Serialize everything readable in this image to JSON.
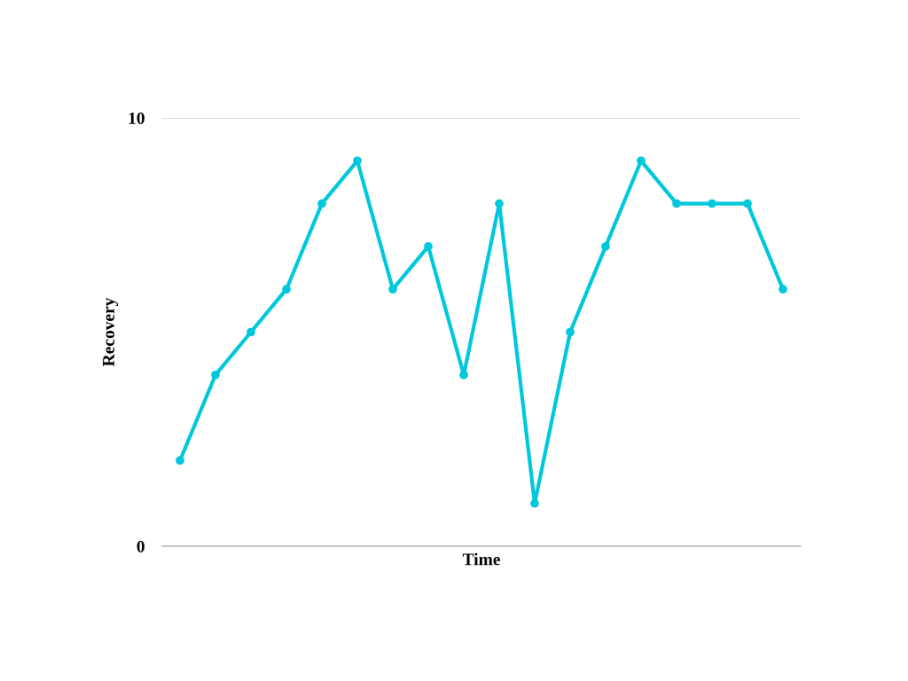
{
  "chart_data": {
    "type": "line",
    "xlabel": "Time",
    "ylabel": "Recovery",
    "categories": [
      null,
      null,
      null,
      null,
      null,
      null,
      null,
      null,
      null,
      null,
      null,
      null,
      null,
      null,
      null,
      null,
      null,
      null
    ],
    "series": [
      {
        "color": "#00c8dc",
        "values": [
          2,
          4,
          5,
          6,
          8,
          9,
          6,
          7,
          4,
          8,
          1,
          5,
          7,
          9,
          8,
          8,
          8,
          6
        ]
      }
    ],
    "ylim": [
      0,
      10
    ],
    "yticks": [
      0,
      10
    ],
    "grid": "y",
    "marker": "circle",
    "line_style": "solid",
    "legend": false
  }
}
